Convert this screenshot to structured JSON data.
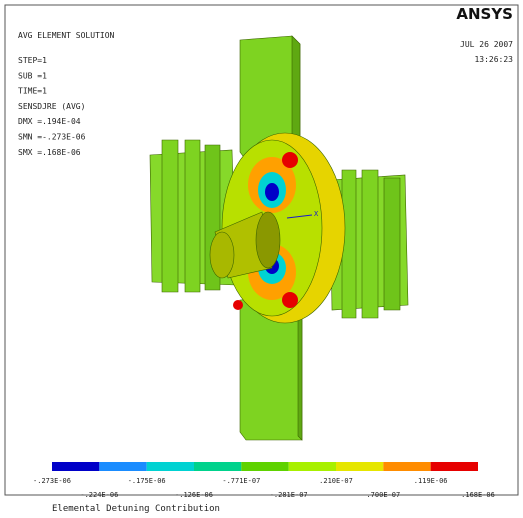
{
  "header": {
    "logo": "ANSYS",
    "title": "AVG ELEMENT SOLUTION",
    "lines": [
      "STEP=1",
      "SUB =1",
      "TIME=1",
      "SENSDJRE (AVG)",
      "DMX =.194E-04",
      "SMN =-.273E-06",
      "SMX =.168E-06"
    ],
    "date": "JUL 26 2007",
    "time": "13:26:23"
  },
  "axis_label": "X",
  "legend": {
    "colors": [
      "#0000c8",
      "#1a8cff",
      "#00d2d2",
      "#00d28c",
      "#5fd200",
      "#a8f000",
      "#e6e600",
      "#ff8c00",
      "#e60000"
    ],
    "labels": [
      "-.273E-06",
      "-.224E-06",
      "-.175E-06",
      "-.126E-06",
      "-.771E-07",
      "-.281E-07",
      ".210E-07",
      ".700E-07",
      ".119E-06",
      ".168E-06"
    ]
  },
  "caption": "Elemental Detuning Contribution"
}
